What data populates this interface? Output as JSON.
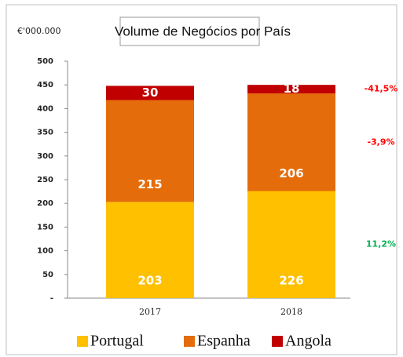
{
  "chart_data": {
    "type": "stacked_bar",
    "title": "Volume de Negócios por País",
    "unit_label": "€'000.000",
    "categories": [
      "2017",
      "2018"
    ],
    "series": [
      {
        "name": "Portugal",
        "color": "#FFC000",
        "values": [
          203,
          226
        ],
        "change_label": "11,2%",
        "change_color": "#00B050"
      },
      {
        "name": "Espanha",
        "color": "#E46C0A",
        "values": [
          215,
          206
        ],
        "change_label": "-3,9%",
        "change_color": "#FF0000"
      },
      {
        "name": "Angola",
        "color": "#C00000",
        "values": [
          30,
          18
        ],
        "change_label": "-41,5%",
        "change_color": "#FF0000"
      }
    ],
    "ylim": [
      0,
      500
    ],
    "yticks": [
      {
        "value": 0,
        "label": "-"
      },
      50,
      100,
      150,
      200,
      250,
      300,
      350,
      400,
      450,
      500
    ],
    "legend": "bottom"
  }
}
